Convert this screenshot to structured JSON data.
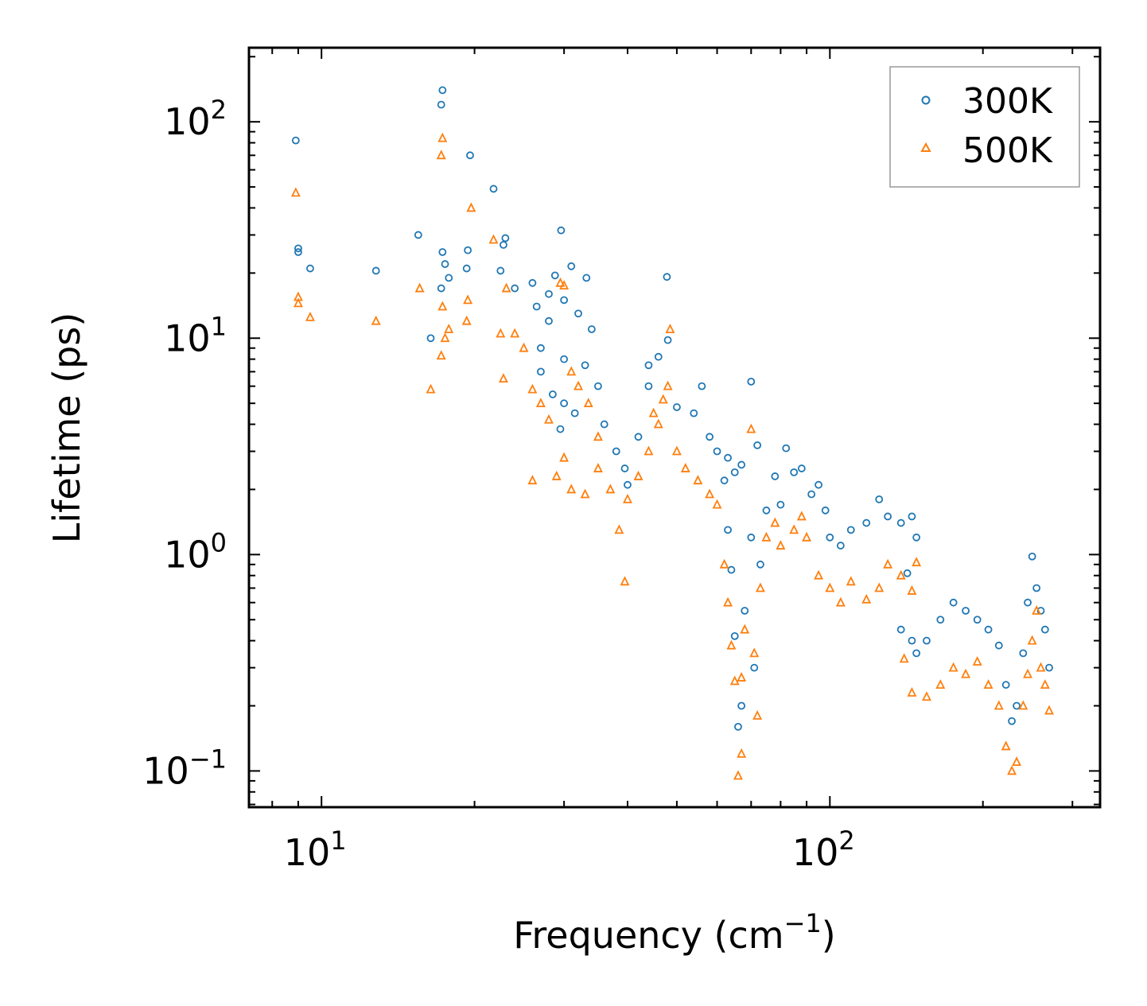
{
  "chart_data": {
    "type": "scatter",
    "title": "",
    "xlabel": "Frequency (cm",
    "xlabel_sup": "−1",
    "xlabel_tail": ")",
    "ylabel": "Lifetime (ps)",
    "xscale": "log",
    "yscale": "log",
    "xlim": [
      7.2,
      340
    ],
    "ylim": [
      0.068,
      220
    ],
    "x_ticks": [
      {
        "value": 10,
        "base": "10",
        "exp": "1"
      },
      {
        "value": 100,
        "base": "10",
        "exp": "2"
      }
    ],
    "y_ticks": [
      {
        "value": 0.1,
        "base": "10",
        "exp": "−1"
      },
      {
        "value": 1,
        "base": "10",
        "exp": "0"
      },
      {
        "value": 10,
        "base": "10",
        "exp": "1"
      },
      {
        "value": 100,
        "base": "10",
        "exp": "2"
      }
    ],
    "legend": {
      "position": "top-right"
    },
    "series": [
      {
        "name": "300K",
        "color": "#1f77b4",
        "marker": "circle",
        "points": [
          [
            8.9,
            82
          ],
          [
            9.0,
            26
          ],
          [
            9.0,
            25
          ],
          [
            9.5,
            21
          ],
          [
            12.8,
            20.5
          ],
          [
            15.5,
            30
          ],
          [
            16.4,
            10
          ],
          [
            17.3,
            140
          ],
          [
            17.2,
            120
          ],
          [
            19.6,
            70
          ],
          [
            21.8,
            49
          ],
          [
            17.3,
            25
          ],
          [
            17.5,
            22
          ],
          [
            17.8,
            19
          ],
          [
            17.2,
            17
          ],
          [
            19.4,
            25.5
          ],
          [
            19.3,
            21
          ],
          [
            22.5,
            20.5
          ],
          [
            22.8,
            27
          ],
          [
            23.0,
            29
          ],
          [
            26,
            18
          ],
          [
            28,
            16
          ],
          [
            29.6,
            31.5
          ],
          [
            28.8,
            19.5
          ],
          [
            31,
            21.5
          ],
          [
            33.2,
            19
          ],
          [
            47.8,
            19.2
          ],
          [
            24,
            17
          ],
          [
            26.5,
            14
          ],
          [
            28,
            12
          ],
          [
            30,
            15
          ],
          [
            32,
            13
          ],
          [
            34,
            11
          ],
          [
            27,
            9
          ],
          [
            30,
            8
          ],
          [
            33,
            7.5
          ],
          [
            27,
            7
          ],
          [
            28.5,
            5.5
          ],
          [
            30,
            5
          ],
          [
            29.5,
            3.8
          ],
          [
            31.5,
            4.5
          ],
          [
            35,
            6
          ],
          [
            36,
            4
          ],
          [
            38,
            3
          ],
          [
            39.5,
            2.5
          ],
          [
            40,
            2.1
          ],
          [
            42,
            3.5
          ],
          [
            44,
            6
          ],
          [
            46,
            8.2
          ],
          [
            48,
            9.8
          ],
          [
            50,
            4.8
          ],
          [
            54,
            4.5
          ],
          [
            56,
            6
          ],
          [
            58,
            3.5
          ],
          [
            60,
            3
          ],
          [
            63,
            2.8
          ],
          [
            65,
            2.4
          ],
          [
            67,
            2.6
          ],
          [
            70,
            6.3
          ],
          [
            72,
            3.2
          ],
          [
            78,
            2.3
          ],
          [
            82,
            3.1
          ],
          [
            88,
            2.5
          ],
          [
            95,
            2.1
          ],
          [
            100,
            1.2
          ],
          [
            105,
            1.1
          ],
          [
            110,
            1.3
          ],
          [
            118,
            1.4
          ],
          [
            125,
            1.8
          ],
          [
            130,
            1.5
          ],
          [
            138,
            1.4
          ],
          [
            145,
            1.5
          ],
          [
            148,
            1.2
          ],
          [
            62,
            2.2
          ],
          [
            63,
            1.3
          ],
          [
            64,
            0.85
          ],
          [
            65,
            0.42
          ],
          [
            66,
            0.16
          ],
          [
            67,
            0.2
          ],
          [
            68,
            0.55
          ],
          [
            70,
            1.2
          ],
          [
            71,
            0.3
          ],
          [
            73,
            0.9
          ],
          [
            75,
            1.6
          ],
          [
            80,
            1.7
          ],
          [
            85,
            2.4
          ],
          [
            92,
            1.9
          ],
          [
            98,
            1.6
          ],
          [
            145,
            0.4
          ],
          [
            148,
            0.35
          ],
          [
            155,
            0.4
          ],
          [
            165,
            0.5
          ],
          [
            175,
            0.6
          ],
          [
            185,
            0.55
          ],
          [
            195,
            0.5
          ],
          [
            205,
            0.45
          ],
          [
            215,
            0.38
          ],
          [
            222,
            0.25
          ],
          [
            228,
            0.17
          ],
          [
            233,
            0.2
          ],
          [
            240,
            0.35
          ],
          [
            245,
            0.6
          ],
          [
            250,
            0.98
          ],
          [
            255,
            0.7
          ],
          [
            260,
            0.55
          ],
          [
            265,
            0.45
          ],
          [
            270,
            0.3
          ],
          [
            138,
            0.45
          ],
          [
            142,
            0.82
          ],
          [
            44,
            7.5
          ]
        ]
      },
      {
        "name": "500K",
        "color": "#ff7f0e",
        "marker": "triangle",
        "points": [
          [
            8.9,
            47
          ],
          [
            9.0,
            15.5
          ],
          [
            9.0,
            14.5
          ],
          [
            9.5,
            12.5
          ],
          [
            12.8,
            12
          ],
          [
            15.6,
            17
          ],
          [
            16.4,
            5.8
          ],
          [
            17.3,
            84
          ],
          [
            17.2,
            70
          ],
          [
            19.7,
            40
          ],
          [
            21.8,
            28.5
          ],
          [
            17.3,
            14
          ],
          [
            17.5,
            10
          ],
          [
            17.8,
            11
          ],
          [
            17.2,
            8.3
          ],
          [
            19.4,
            15
          ],
          [
            19.3,
            12
          ],
          [
            22.5,
            10.5
          ],
          [
            22.8,
            6.5
          ],
          [
            23.1,
            17
          ],
          [
            24,
            10.5
          ],
          [
            25,
            9
          ],
          [
            26,
            5.8
          ],
          [
            27,
            5
          ],
          [
            28,
            4.2
          ],
          [
            29.5,
            18
          ],
          [
            30,
            17.5
          ],
          [
            31,
            7
          ],
          [
            32,
            6
          ],
          [
            33.5,
            5
          ],
          [
            29,
            2.3
          ],
          [
            31,
            2
          ],
          [
            33,
            1.9
          ],
          [
            35,
            2.5
          ],
          [
            37,
            2
          ],
          [
            38.5,
            1.3
          ],
          [
            39.5,
            0.75
          ],
          [
            40,
            1.8
          ],
          [
            42,
            2.3
          ],
          [
            44,
            3
          ],
          [
            46,
            4
          ],
          [
            48,
            6
          ],
          [
            48.5,
            11
          ],
          [
            50,
            3
          ],
          [
            52,
            2.5
          ],
          [
            55,
            2.2
          ],
          [
            58,
            1.9
          ],
          [
            60,
            1.7
          ],
          [
            62,
            0.9
          ],
          [
            63,
            0.6
          ],
          [
            64,
            0.38
          ],
          [
            65,
            0.26
          ],
          [
            66,
            0.095
          ],
          [
            67,
            0.12
          ],
          [
            68,
            0.45
          ],
          [
            70,
            3.8
          ],
          [
            72,
            0.18
          ],
          [
            73,
            0.7
          ],
          [
            75,
            1.2
          ],
          [
            80,
            1.1
          ],
          [
            85,
            1.3
          ],
          [
            90,
            1.2
          ],
          [
            95,
            0.8
          ],
          [
            100,
            0.7
          ],
          [
            105,
            0.6
          ],
          [
            110,
            0.75
          ],
          [
            118,
            0.62
          ],
          [
            125,
            0.7
          ],
          [
            130,
            0.9
          ],
          [
            138,
            0.8
          ],
          [
            145,
            0.68
          ],
          [
            148,
            0.92
          ],
          [
            145,
            0.23
          ],
          [
            155,
            0.22
          ],
          [
            165,
            0.25
          ],
          [
            175,
            0.3
          ],
          [
            185,
            0.28
          ],
          [
            195,
            0.32
          ],
          [
            205,
            0.25
          ],
          [
            215,
            0.2
          ],
          [
            222,
            0.13
          ],
          [
            228,
            0.1
          ],
          [
            233,
            0.11
          ],
          [
            240,
            0.2
          ],
          [
            245,
            0.28
          ],
          [
            250,
            0.4
          ],
          [
            255,
            0.55
          ],
          [
            260,
            0.3
          ],
          [
            265,
            0.25
          ],
          [
            270,
            0.19
          ],
          [
            140,
            0.33
          ],
          [
            67,
            0.27
          ],
          [
            71,
            0.35
          ],
          [
            78,
            1.4
          ],
          [
            88,
            1.5
          ],
          [
            35,
            3.5
          ],
          [
            30,
            2.8
          ],
          [
            26,
            2.2
          ],
          [
            45,
            4.5
          ],
          [
            47,
            5.2
          ]
        ]
      }
    ]
  }
}
